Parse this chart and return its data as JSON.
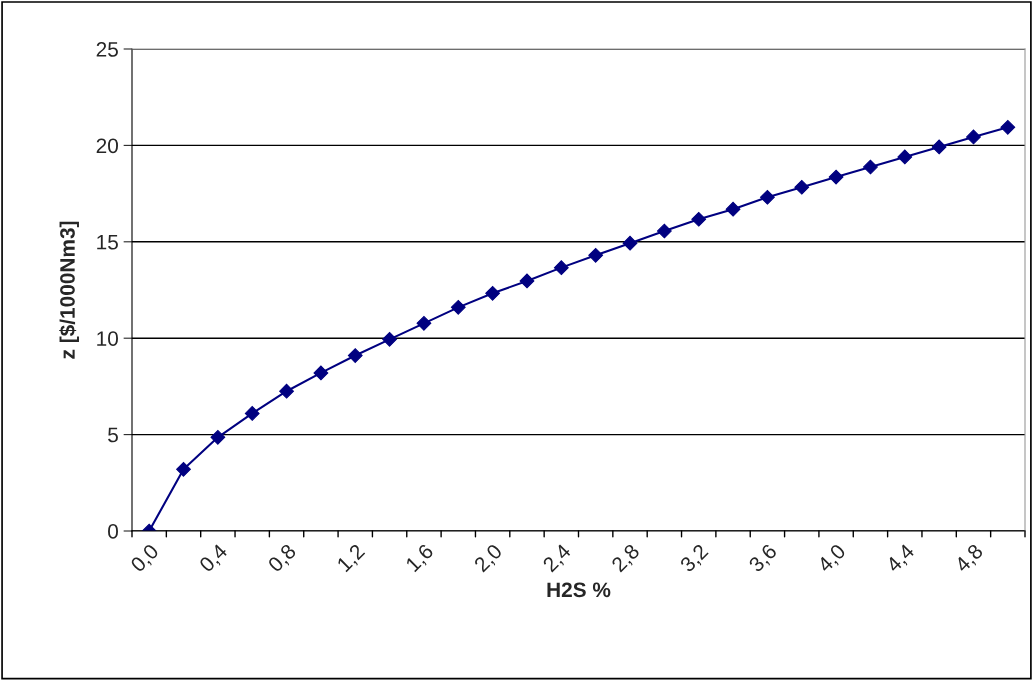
{
  "chart_data": {
    "type": "line",
    "xlabel": "H2S %",
    "ylabel": "z [$/1000Nm3]",
    "categories": [
      "0,0",
      null,
      "0,4",
      null,
      "0,8",
      null,
      "1,2",
      null,
      "1,6",
      null,
      "2,0",
      null,
      "2,4",
      null,
      "2,8",
      null,
      "3,2",
      null,
      "3,6",
      null,
      "4,0",
      null,
      "4,4",
      null,
      "4,8",
      null
    ],
    "series": [
      {
        "color": "#000080",
        "values": [
          0,
          3.2,
          4.86,
          6.1,
          7.25,
          8.2,
          9.1,
          9.94,
          10.77,
          11.6,
          12.33,
          12.97,
          13.66,
          14.3,
          14.93,
          15.56,
          16.17,
          16.69,
          17.31,
          17.83,
          18.36,
          18.88,
          19.4,
          19.92,
          20.44,
          20.94
        ]
      }
    ],
    "ylim": [
      0,
      25
    ],
    "yticks": [
      0,
      5,
      10,
      15,
      20,
      25
    ],
    "grid": "y",
    "marker": "diamond",
    "line_style": "solid",
    "legend": false
  }
}
